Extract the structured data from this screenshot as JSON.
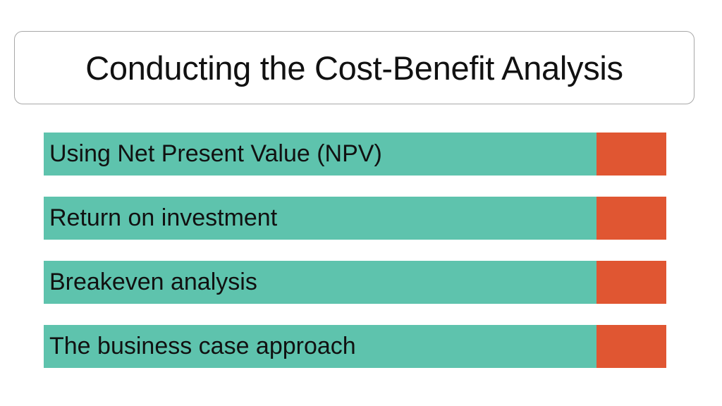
{
  "slide": {
    "title": "Conducting the Cost-Benefit Analysis",
    "items": [
      {
        "label": "Using Net Present Value (NPV)"
      },
      {
        "label": "Return on investment"
      },
      {
        "label": "Breakeven analysis"
      },
      {
        "label": "The business case approach"
      }
    ]
  },
  "colors": {
    "item_fill": "#5ec3ad",
    "accent_fill": "#e05632",
    "title_border": "#a8a8a8",
    "text": "#111111",
    "background": "#ffffff"
  }
}
